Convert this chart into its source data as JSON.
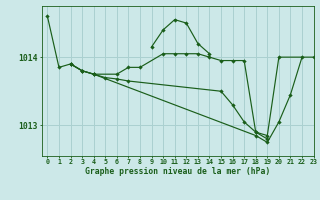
{
  "background_color": "#cce8e8",
  "grid_color": "#aad0d0",
  "line_color": "#1a5e1a",
  "title": "Graphe pression niveau de la mer (hPa)",
  "ylabel_ticks": [
    1013,
    1014
  ],
  "xlim": [
    -0.5,
    23
  ],
  "ylim": [
    1012.55,
    1014.75
  ],
  "figsize": [
    3.2,
    2.0
  ],
  "dpi": 100,
  "series": [
    {
      "x": [
        0,
        1,
        2,
        3,
        4,
        6,
        7,
        8,
        10,
        11,
        12,
        13,
        14,
        15,
        16,
        17,
        18,
        19,
        20,
        23
      ],
      "y": [
        1014.6,
        1013.85,
        1013.9,
        1013.8,
        1013.75,
        1013.75,
        1013.85,
        1013.85,
        1014.05,
        1014.05,
        1014.05,
        1014.05,
        1014.0,
        1013.95,
        1013.95,
        1013.95,
        1012.9,
        1012.85,
        1014.0,
        1014.0
      ]
    },
    {
      "x": [
        9,
        10,
        11,
        12,
        13,
        14
      ],
      "y": [
        1014.15,
        1014.4,
        1014.55,
        1014.5,
        1014.2,
        1014.05
      ]
    },
    {
      "x": [
        2,
        3,
        4,
        5,
        6,
        7,
        15,
        16,
        17,
        18,
        19
      ],
      "y": [
        1013.9,
        1013.8,
        1013.75,
        1013.7,
        1013.68,
        1013.65,
        1013.5,
        1013.3,
        1013.05,
        1012.9,
        1012.8
      ]
    },
    {
      "x": [
        2,
        3,
        4,
        18,
        19,
        20,
        21,
        22
      ],
      "y": [
        1013.9,
        1013.8,
        1013.75,
        1012.85,
        1012.75,
        1013.05,
        1013.45,
        1014.0
      ]
    }
  ]
}
